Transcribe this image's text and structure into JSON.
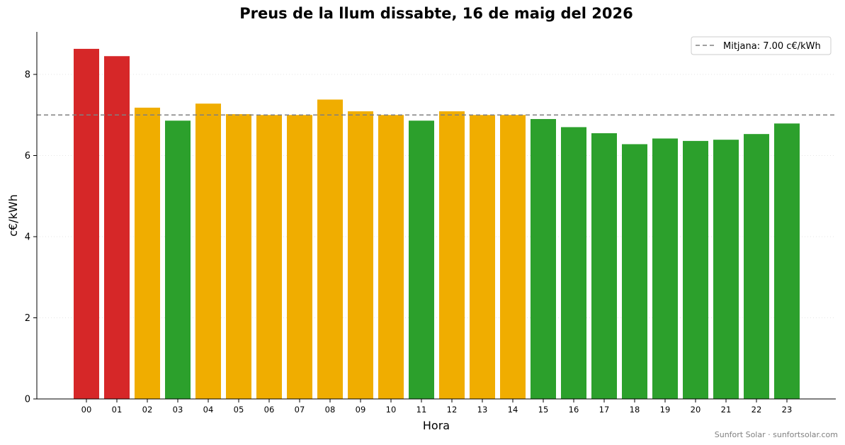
{
  "chart_data": {
    "type": "bar",
    "title": "Preus de la llum dissabte, 16 de maig del 2026",
    "xlabel": "Hora",
    "ylabel": "c€/kWh",
    "ylim": [
      0,
      9.07
    ],
    "yticks": [
      0,
      2,
      4,
      6,
      8
    ],
    "grid": "horizontal dotted",
    "categories": [
      "00",
      "01",
      "02",
      "03",
      "04",
      "05",
      "06",
      "07",
      "08",
      "09",
      "10",
      "11",
      "12",
      "13",
      "14",
      "15",
      "16",
      "17",
      "18",
      "19",
      "20",
      "21",
      "22",
      "23"
    ],
    "values": [
      8.63,
      8.45,
      7.18,
      6.86,
      7.28,
      7.02,
      7.0,
      7.0,
      7.38,
      7.09,
      7.0,
      6.86,
      7.09,
      7.0,
      7.0,
      6.9,
      6.7,
      6.55,
      6.28,
      6.42,
      6.36,
      6.39,
      6.53,
      6.79
    ],
    "bar_levels": [
      "high",
      "high",
      "mid",
      "low",
      "mid",
      "mid",
      "mid",
      "mid",
      "mid",
      "mid",
      "mid",
      "low",
      "mid",
      "mid",
      "mid",
      "low",
      "low",
      "low",
      "low",
      "low",
      "low",
      "low",
      "low",
      "low"
    ],
    "level_colors": {
      "high": "#d62728",
      "mid": "#f0ad00",
      "low": "#2ca02c"
    },
    "mean": 7.0,
    "mean_color": "#808080",
    "legend": {
      "label": "Mitjana: 7.00 c€/kWh",
      "placement": "top-right"
    },
    "credit": "Sunfort Solar · sunfortsolar.com"
  }
}
